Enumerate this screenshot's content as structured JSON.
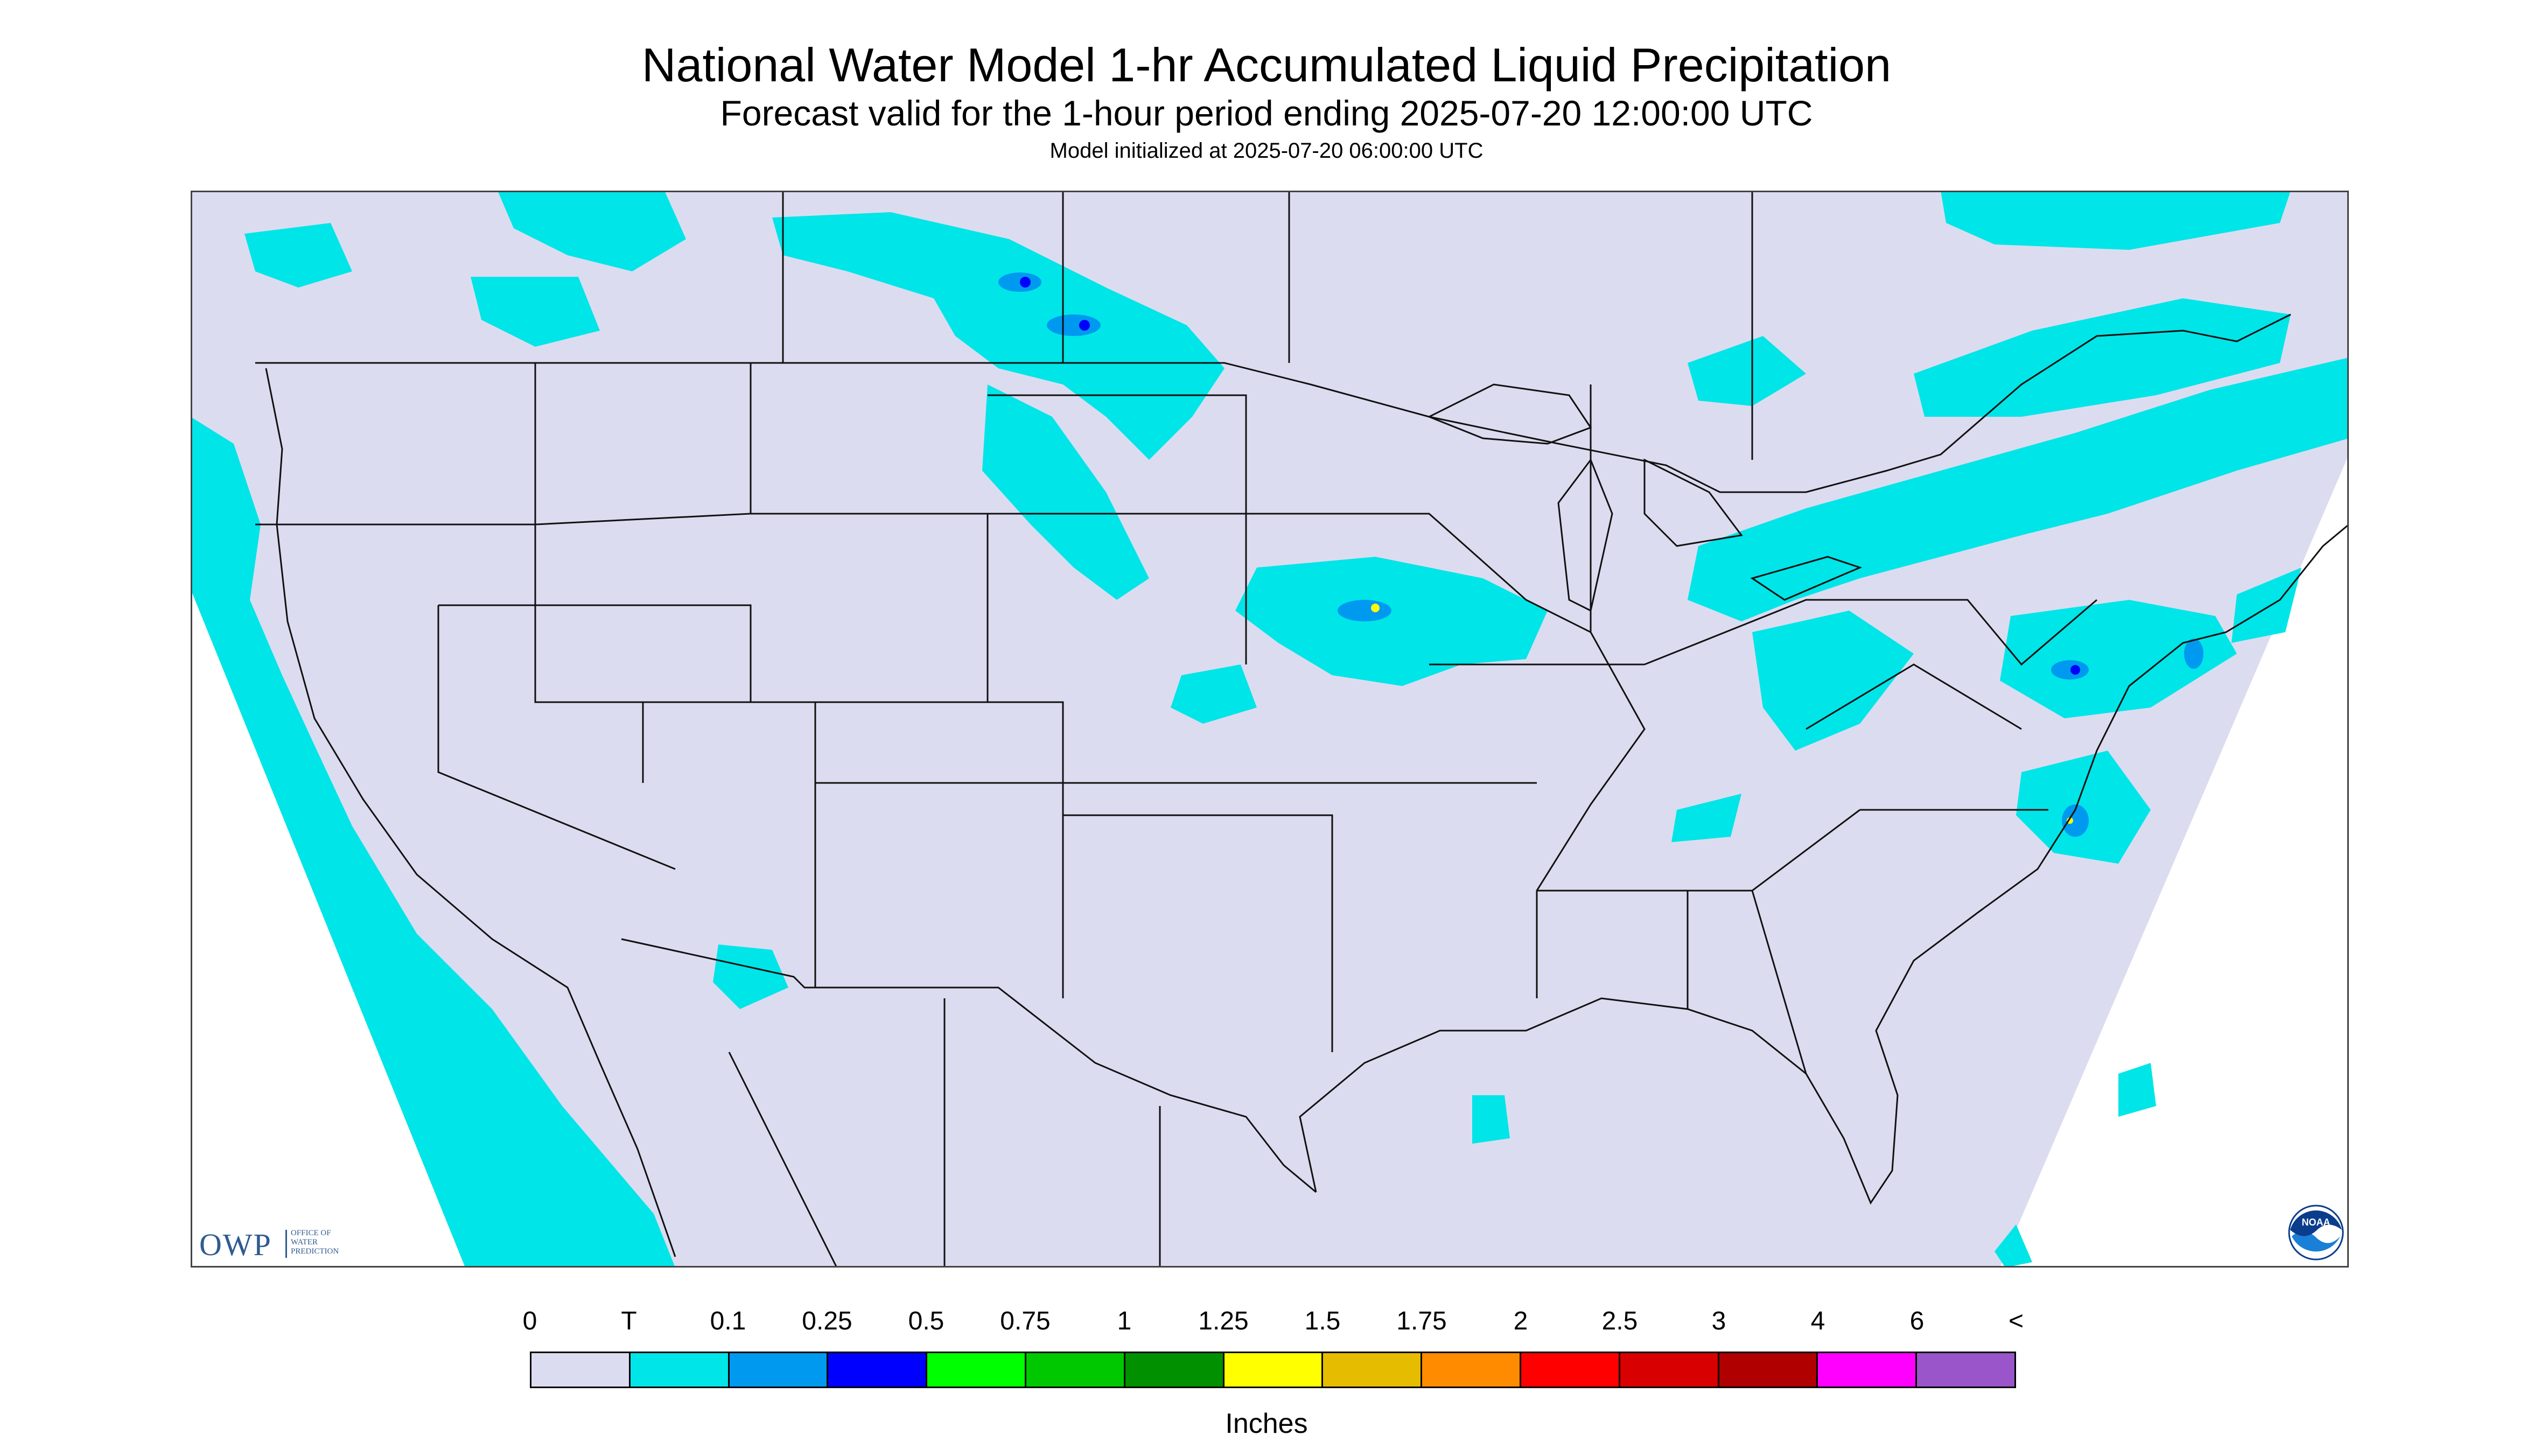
{
  "title": "National Water Model 1-hr Accumulated Liquid Precipitation",
  "subtitle": "Forecast valid for the 1-hour period ending 2025-07-20 12:00:00 UTC",
  "init_line": "Model initialized at 2025-07-20 06:00:00 UTC",
  "units_label": "Inches",
  "logos": {
    "owp_text": "OWP",
    "owp_subtext": "OFFICE OF\nWATER\nPREDICTION",
    "noaa_text": "NOAA"
  },
  "legend": {
    "labels": [
      "0",
      "T",
      "0.1",
      "0.25",
      "0.5",
      "0.75",
      "1",
      "1.25",
      "1.5",
      "1.75",
      "2",
      "2.5",
      "3",
      "4",
      "6",
      "<"
    ],
    "colors": [
      "#dcdcf0",
      "#00e5e8",
      "#0099f0",
      "#0000ff",
      "#00ff00",
      "#00c800",
      "#009000",
      "#ffff00",
      "#e6bc00",
      "#ff8c00",
      "#ff0000",
      "#d80000",
      "#b00000",
      "#ff00ff",
      "#9955c9"
    ]
  },
  "colors": {
    "background_no_data": "#ffffff",
    "zero_precip": "#dcdcf0",
    "trace": "#00e5e8",
    "border_lines": "#111111"
  }
}
